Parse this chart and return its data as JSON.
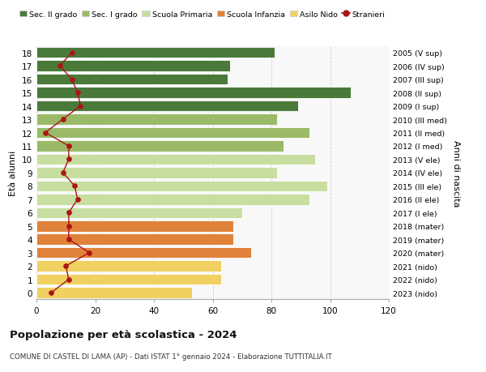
{
  "ages": [
    0,
    1,
    2,
    3,
    4,
    5,
    6,
    7,
    8,
    9,
    10,
    11,
    12,
    13,
    14,
    15,
    16,
    17,
    18
  ],
  "years": [
    "2023 (nido)",
    "2022 (nido)",
    "2021 (nido)",
    "2020 (mater)",
    "2019 (mater)",
    "2018 (mater)",
    "2017 (I ele)",
    "2016 (II ele)",
    "2015 (III ele)",
    "2014 (IV ele)",
    "2013 (V ele)",
    "2012 (I med)",
    "2011 (II med)",
    "2010 (III med)",
    "2009 (I sup)",
    "2008 (II sup)",
    "2007 (III sup)",
    "2006 (IV sup)",
    "2005 (V sup)"
  ],
  "values": [
    53,
    63,
    63,
    73,
    67,
    67,
    70,
    93,
    99,
    82,
    95,
    84,
    93,
    82,
    89,
    107,
    65,
    66,
    81
  ],
  "stranieri": [
    5,
    11,
    10,
    18,
    11,
    11,
    11,
    14,
    13,
    9,
    11,
    11,
    3,
    9,
    15,
    14,
    12,
    8,
    12
  ],
  "bar_colors": [
    "#f0d060",
    "#f0d060",
    "#f0d060",
    "#e0823a",
    "#e0823a",
    "#e0823a",
    "#c8dea0",
    "#c8dea0",
    "#c8dea0",
    "#c8dea0",
    "#c8dea0",
    "#9aba68",
    "#9aba68",
    "#9aba68",
    "#4a7a3a",
    "#4a7a3a",
    "#4a7a3a",
    "#4a7a3a",
    "#4a7a3a"
  ],
  "legend_colors": {
    "Sec. II grado": "#4a7a3a",
    "Sec. I grado": "#9aba68",
    "Scuola Primaria": "#c8dea0",
    "Scuola Infanzia": "#e0823a",
    "Asilo Nido": "#f0d060",
    "Stranieri": "#aa1515"
  },
  "xlim": [
    0,
    120
  ],
  "xticks": [
    0,
    20,
    40,
    60,
    80,
    100,
    120
  ],
  "ylabel_left": "Età alunni",
  "ylabel_right": "Anni di nascita",
  "title": "Popolazione per età scolastica - 2024",
  "subtitle": "COMUNE DI CASTEL DI LAMA (AP) - Dati ISTAT 1° gennaio 2024 - Elaborazione TUTTITALIA.IT",
  "bg_color": "#f8f8f8",
  "bar_edge_color": "white"
}
